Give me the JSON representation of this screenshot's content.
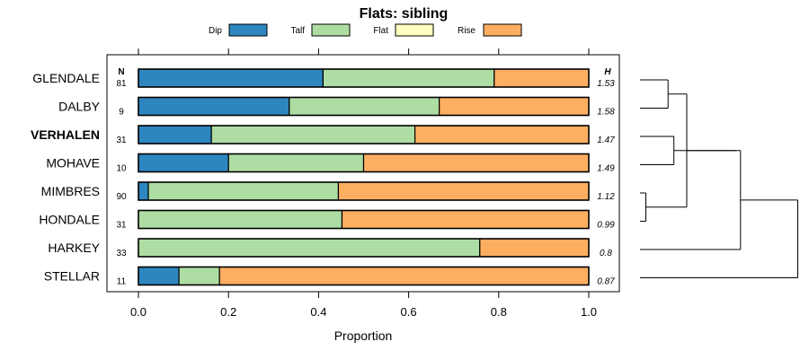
{
  "chart_data": {
    "type": "bar",
    "stacked": true,
    "orientation": "horizontal",
    "title": "Flats: sibling",
    "xlabel": "Proportion",
    "ylabel": "",
    "xlim": [
      0,
      1
    ],
    "x_ticks": [
      "0.0",
      "0.2",
      "0.4",
      "0.6",
      "0.8",
      "1.0"
    ],
    "x_tick_values": [
      0,
      0.2,
      0.4,
      0.6,
      0.8,
      1.0
    ],
    "legend_position": "top",
    "n_header": "N",
    "h_header": "H",
    "series": [
      {
        "name": "Dip",
        "color": "#2e86bf"
      },
      {
        "name": "Talf",
        "color": "#addda2"
      },
      {
        "name": "Flat",
        "color": "#ffffbf"
      },
      {
        "name": "Rise",
        "color": "#fdae61"
      }
    ],
    "rows": [
      {
        "label": "GLENDALE",
        "bold": false,
        "n": "81",
        "h": "1.53",
        "values": [
          0.41,
          0.38,
          0.0,
          0.21
        ]
      },
      {
        "label": "DALBY",
        "bold": false,
        "n": "9",
        "h": "1.58",
        "values": [
          0.335,
          0.333,
          0.0,
          0.332
        ]
      },
      {
        "label": "VERHALEN",
        "bold": true,
        "n": "31",
        "h": "1.47",
        "values": [
          0.162,
          0.452,
          0.0,
          0.386
        ]
      },
      {
        "label": "MOHAVE",
        "bold": false,
        "n": "10",
        "h": "1.49",
        "values": [
          0.2,
          0.3,
          0.0,
          0.5
        ]
      },
      {
        "label": "MIMBRES",
        "bold": false,
        "n": "90",
        "h": "1.12",
        "values": [
          0.022,
          0.422,
          0.0,
          0.556
        ]
      },
      {
        "label": "HONDALE",
        "bold": false,
        "n": "31",
        "h": "0.99",
        "values": [
          0.0,
          0.452,
          0.0,
          0.548
        ]
      },
      {
        "label": "HARKEY",
        "bold": false,
        "n": "33",
        "h": "0.8",
        "values": [
          0.0,
          0.758,
          0.0,
          0.242
        ]
      },
      {
        "label": "STELLAR",
        "bold": false,
        "n": "11",
        "h": "0.87",
        "values": [
          0.09,
          0.09,
          0.0,
          0.82
        ]
      }
    ],
    "dendrogram": {
      "leaves": [
        "GLENDALE",
        "DALBY",
        "VERHALEN",
        "MOHAVE",
        "MIMBRES",
        "HONDALE",
        "HARKEY",
        "STELLAR"
      ],
      "merges": [
        {
          "a": 4,
          "b": 5,
          "height": 0.05
        },
        {
          "a": 0,
          "b": 1,
          "height": 0.24
        },
        {
          "a": 2,
          "b": 3,
          "height": 0.29
        },
        {
          "a": 9,
          "b": 8,
          "height": 0.4
        },
        {
          "a": 10,
          "b": 11,
          "height": 0.82
        },
        {
          "a": 12,
          "b": 6,
          "height": 0.86
        },
        {
          "a": 13,
          "b": 7,
          "height": 1.35
        }
      ]
    }
  }
}
